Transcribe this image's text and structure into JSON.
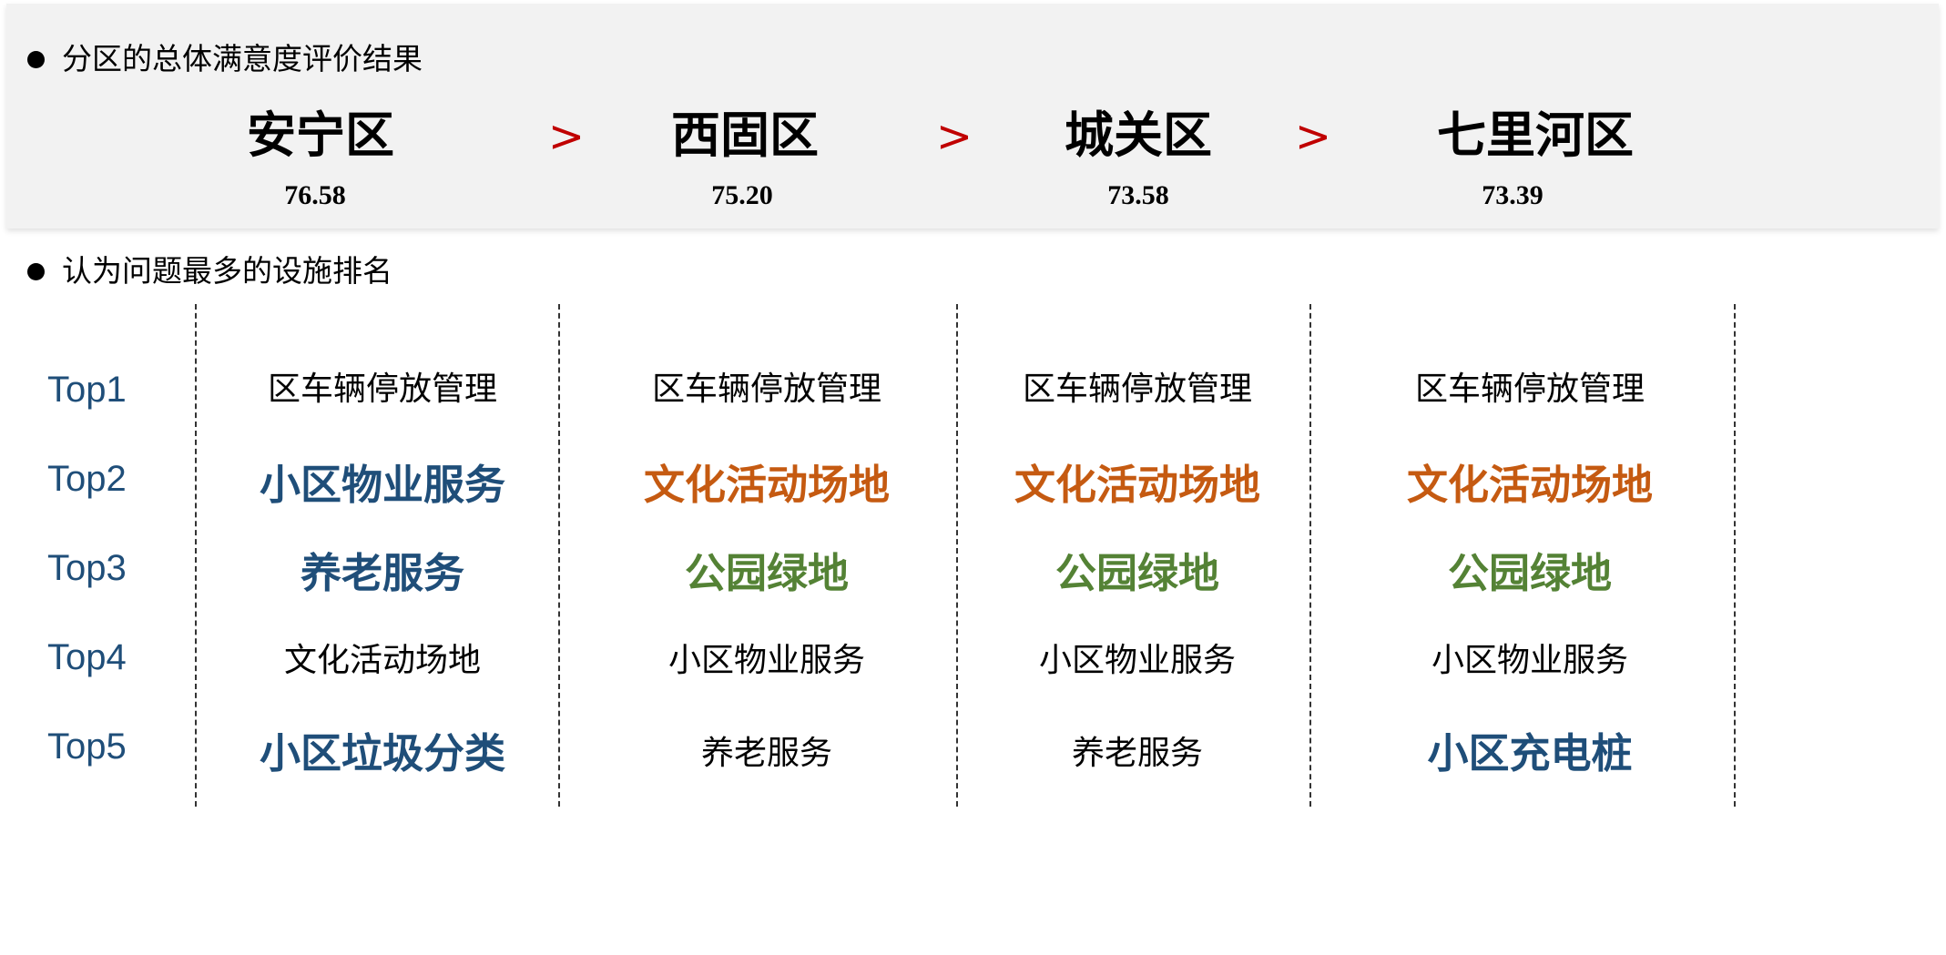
{
  "section1": {
    "title": "分区的总体满意度评价结果",
    "districts": [
      {
        "name": "安宁区",
        "score": "76.58"
      },
      {
        "name": "西固区",
        "score": "75.20"
      },
      {
        "name": "城关区",
        "score": "73.58"
      },
      {
        "name": "七里河区",
        "score": "73.39"
      }
    ],
    "separator": ">",
    "separator_color": "#c00000"
  },
  "section2": {
    "title": "认为问题最多的设施排名",
    "rank_labels": [
      "Top1",
      "Top2",
      "Top3",
      "Top4",
      "Top5"
    ],
    "colors": {
      "blue": "#1f4e79",
      "orange": "#c55a11",
      "green": "#548235",
      "normal": "#000000"
    },
    "columns": [
      {
        "items": [
          {
            "text": "区车辆停放管理",
            "style": "normal"
          },
          {
            "text": "小区物业服务",
            "style": "blue"
          },
          {
            "text": "养老服务",
            "style": "blue"
          },
          {
            "text": "文化活动场地",
            "style": "normal"
          },
          {
            "text": "小区垃圾分类",
            "style": "blue"
          }
        ]
      },
      {
        "items": [
          {
            "text": "区车辆停放管理",
            "style": "normal"
          },
          {
            "text": "文化活动场地",
            "style": "orange"
          },
          {
            "text": "公园绿地",
            "style": "green"
          },
          {
            "text": "小区物业服务",
            "style": "normal"
          },
          {
            "text": "养老服务",
            "style": "normal"
          }
        ]
      },
      {
        "items": [
          {
            "text": "区车辆停放管理",
            "style": "normal"
          },
          {
            "text": "文化活动场地",
            "style": "orange"
          },
          {
            "text": "公园绿地",
            "style": "green"
          },
          {
            "text": "小区物业服务",
            "style": "normal"
          },
          {
            "text": "养老服务",
            "style": "normal"
          }
        ]
      },
      {
        "items": [
          {
            "text": "区车辆停放管理",
            "style": "normal"
          },
          {
            "text": "文化活动场地",
            "style": "orange"
          },
          {
            "text": "公园绿地",
            "style": "green"
          },
          {
            "text": "小区物业服务",
            "style": "normal"
          },
          {
            "text": "小区充电桩",
            "style": "blue"
          }
        ]
      }
    ]
  }
}
